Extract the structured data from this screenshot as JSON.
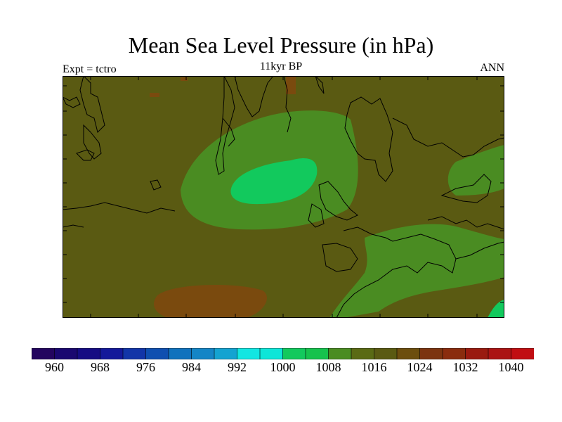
{
  "title": "Mean Sea Level Pressure (in hPa)",
  "subtitle": "11kyr BP",
  "left_label": "Expt = tctro",
  "right_label": "ANN",
  "colorbar": {
    "colors": [
      "#23055f",
      "#1a0870",
      "#160c83",
      "#14199a",
      "#1235a8",
      "#0f4fb0",
      "#1072bd",
      "#1485c6",
      "#14a3d1",
      "#12e6e2",
      "#0ee6d8",
      "#12c95d",
      "#16c24d",
      "#4a8c22",
      "#5a6a14",
      "#5a5a12",
      "#6c4e0e",
      "#7c3410",
      "#8a2c0e",
      "#9a1a10",
      "#ab1414",
      "#c10e12"
    ],
    "tick_labels": [
      "960",
      "968",
      "976",
      "984",
      "992",
      "1000",
      "1008",
      "1016",
      "1024",
      "1032",
      "1040"
    ]
  },
  "map": {
    "background_color": "#5a5a12",
    "low_pressure_colors": {
      "level_1008": "#4a8c22",
      "level_1000": "#12c95d"
    },
    "high_pressure_color": "#7a4a0e",
    "coastline_color": "#000000"
  }
}
